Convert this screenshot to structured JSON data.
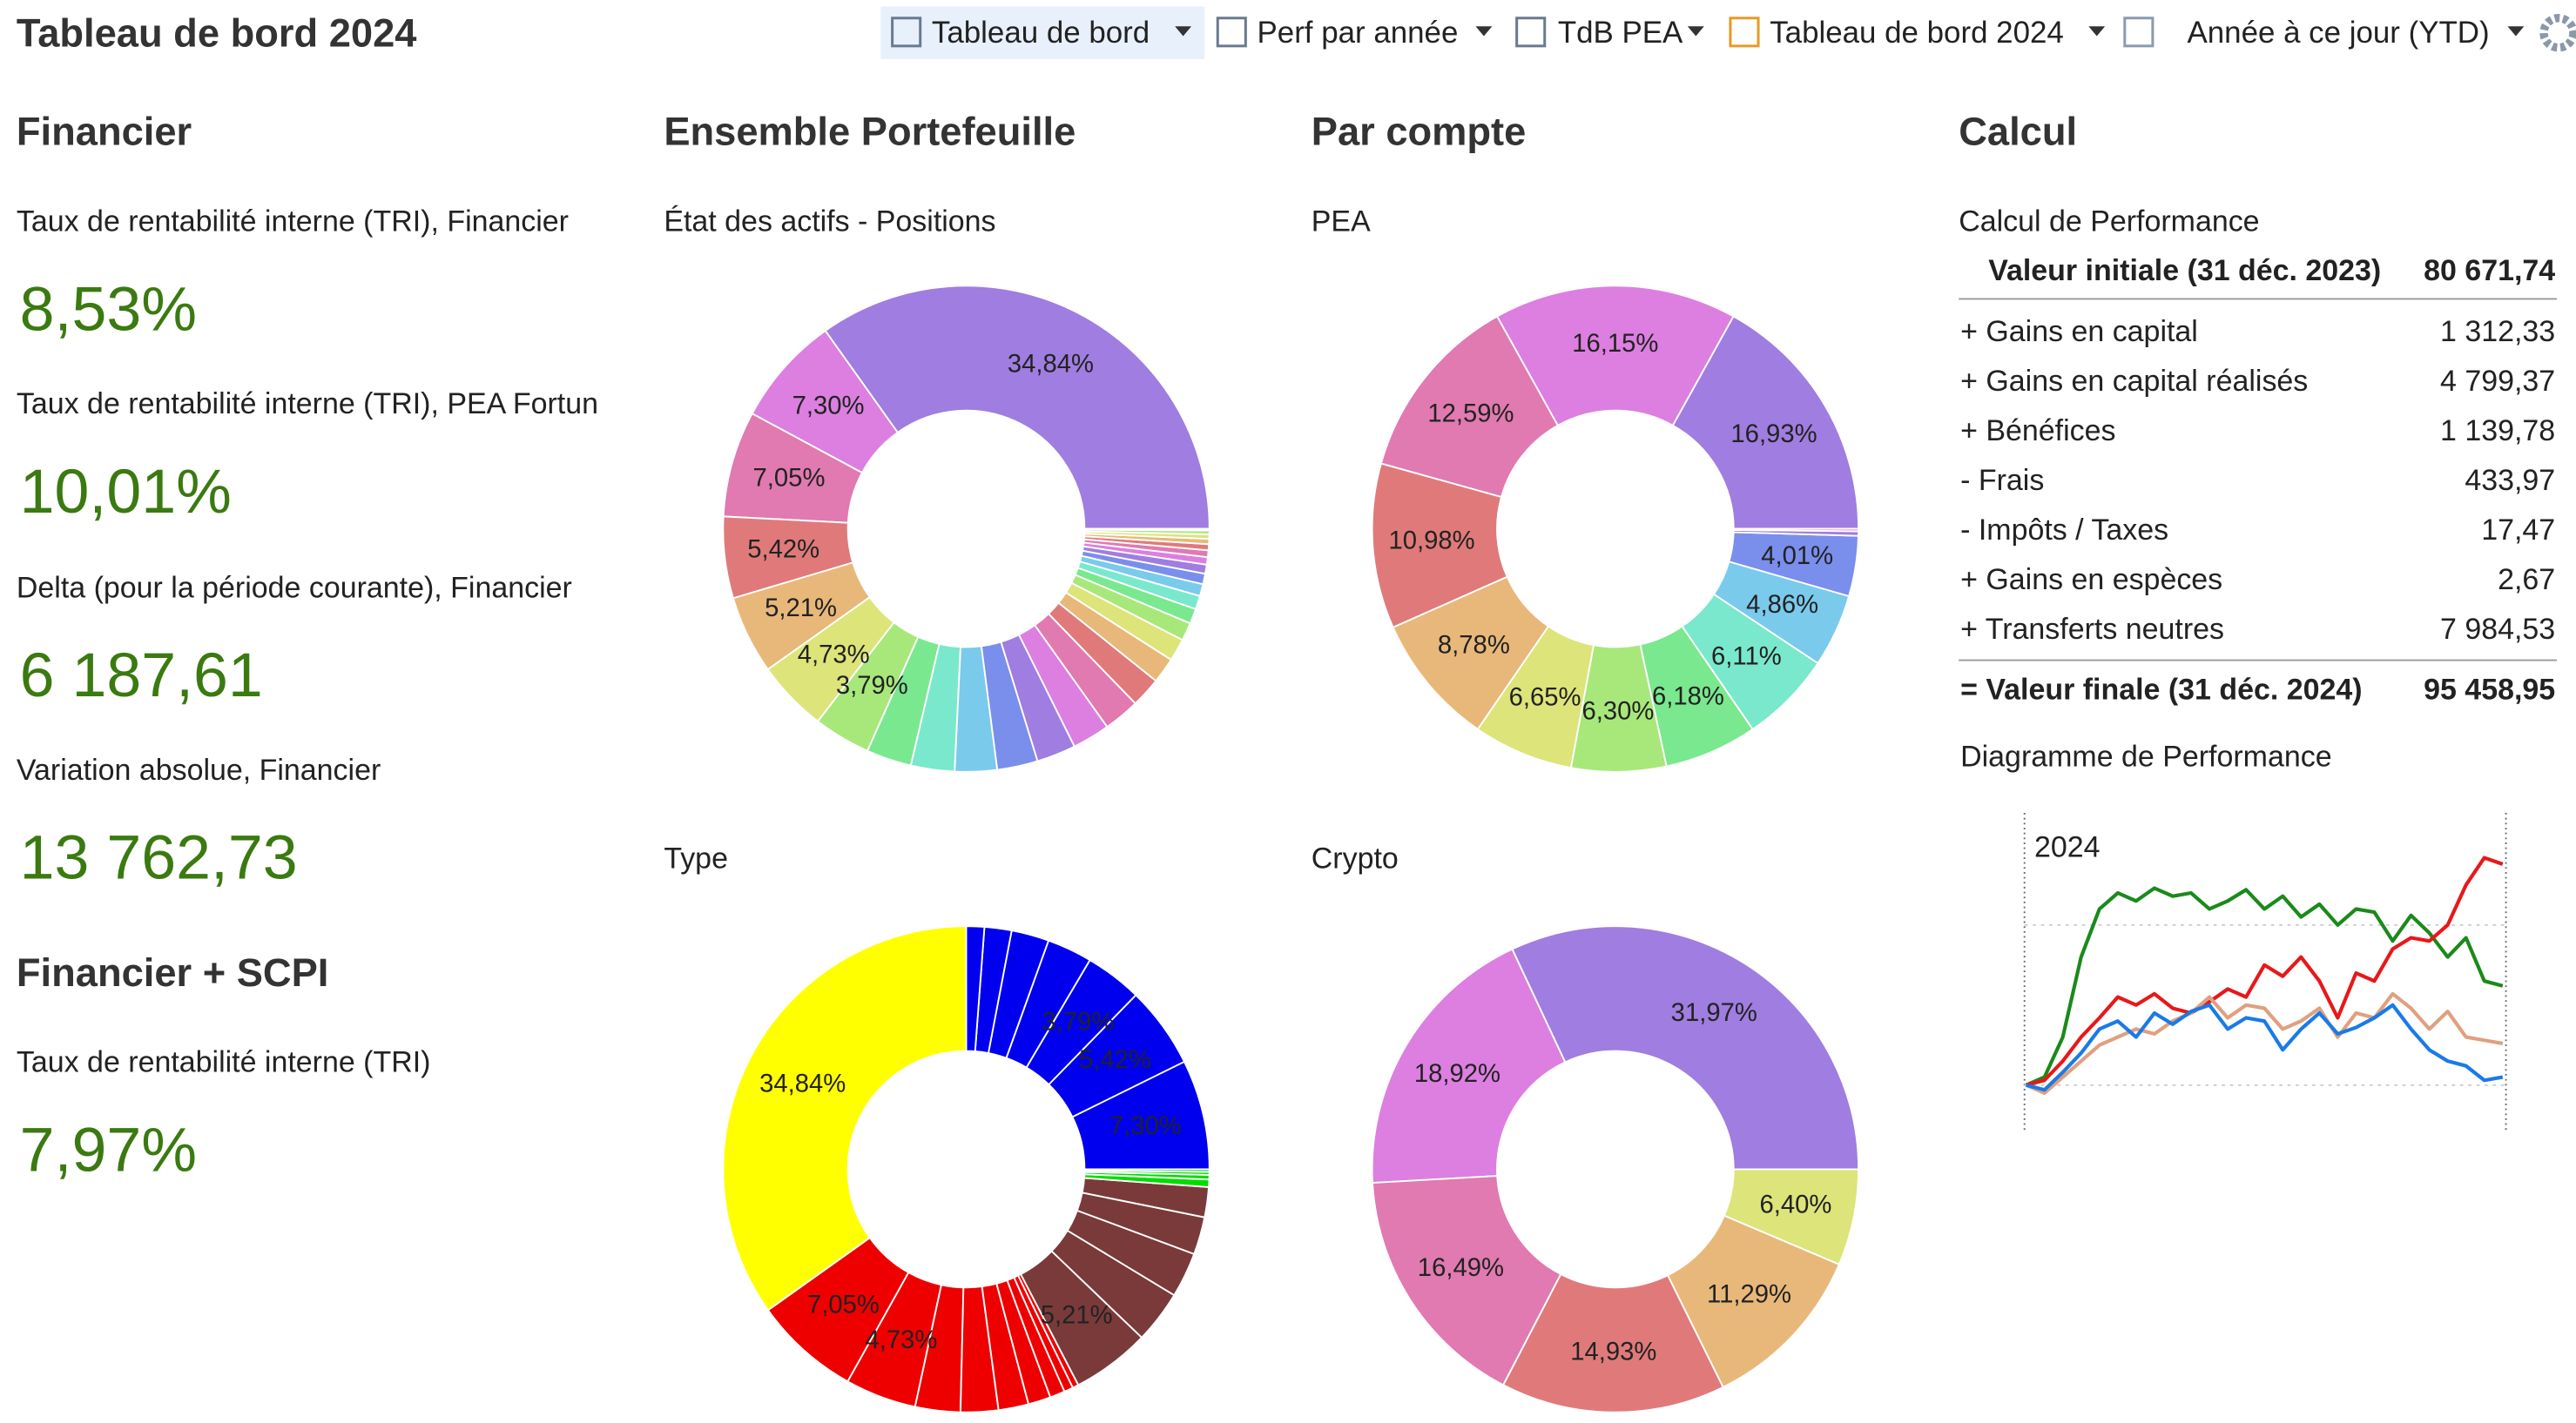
{
  "header": {
    "title": "Tableau de bord 2024",
    "tabs": [
      "Tableau de bord",
      "Perf par année",
      "TdB PEA",
      "Tableau de bord 2024",
      "Année à ce jour (YTD)"
    ]
  },
  "sections": {
    "financier": {
      "title": "Financier",
      "kpis": [
        {
          "label": "Taux de rentabilité interne (TRI), Financier",
          "value": "8,53%"
        },
        {
          "label": "Taux de rentabilité interne (TRI), PEA Fortun",
          "value": "10,01%"
        },
        {
          "label": "Delta (pour la période courante), Financier",
          "value": "6 187,61"
        },
        {
          "label": "Variation absolue, Financier",
          "value": "13 762,73"
        }
      ]
    },
    "financier_scpi": {
      "title": "Financier + SCPI",
      "kpis": [
        {
          "label": "Taux de rentabilité interne (TRI)",
          "value": "7,97%"
        }
      ]
    },
    "portefeuille": {
      "title": "Ensemble Portefeuille"
    },
    "par_compte": {
      "title": "Par compte"
    },
    "calcul": {
      "title": "Calcul",
      "subtitle": "Calcul de Performance",
      "initial": {
        "label": "Valeur initiale (31 déc. 2023)",
        "value": "80 671,74"
      },
      "rows": [
        {
          "label": "+ Gains en capital",
          "value": "1 312,33"
        },
        {
          "label": "+ Gains en capital réalisés",
          "value": "4 799,37"
        },
        {
          "label": "+ Bénéfices",
          "value": "1 139,78"
        },
        {
          "label": "-  Frais",
          "value": "433,97"
        },
        {
          "label": "-  Impôts / Taxes",
          "value": "17,47"
        },
        {
          "label": "+ Gains en espèces",
          "value": "2,67"
        },
        {
          "label": "+ Transferts neutres",
          "value": "7 984,53"
        }
      ],
      "final": {
        "label": "= Valeur finale (31 déc. 2024)",
        "value": "95 458,95"
      }
    }
  },
  "chart_data": [
    {
      "type": "pie",
      "title": "État des actifs - Positions",
      "values": [
        34.84,
        7.3,
        7.05,
        5.42,
        5.21,
        4.73,
        3.79,
        3.0,
        2.9,
        2.8,
        2.7,
        2.6,
        2.5,
        2.4,
        2.0,
        1.7,
        1.5,
        1.2,
        1.0,
        0.9,
        0.8,
        0.7,
        0.6,
        0.5,
        0.45,
        0.4,
        0.35,
        0.3,
        0.25,
        0.11
      ],
      "value_labels": [
        "34,84%",
        "7,30%",
        "7,05%",
        "5,42%",
        "5,21%",
        "4,73%",
        "3,79%",
        null,
        null,
        null,
        null,
        null,
        null,
        null,
        null,
        null,
        null,
        null,
        null,
        null,
        null,
        null,
        null,
        null,
        null,
        null,
        null,
        null,
        null,
        null
      ],
      "colors": [
        "#a07de0",
        "#dc7fe0",
        "#e07ab0",
        "#e07a7a",
        "#e8b87a",
        "#dde47a",
        "#a8e87a",
        "#7ae88e",
        "#7ae8cc",
        "#7acaec",
        "#7a8eec",
        "#a07de0",
        "#dc7fe0",
        "#e07ab0",
        "#e07a7a",
        "#e8b87a",
        "#dde47a",
        "#a8e87a",
        "#7ae88e",
        "#7ae8cc",
        "#7acaec",
        "#7a8eec",
        "#a07de0",
        "#dc7fe0",
        "#e07ab0",
        "#e07a7a",
        "#e8b87a",
        "#dde47a",
        "#a8e87a",
        "#7ae88e"
      ]
    },
    {
      "type": "pie",
      "title": "Type",
      "values": [
        7.3,
        5.42,
        3.79,
        3.0,
        2.5,
        1.8,
        1.2,
        34.84,
        7.05,
        4.73,
        3.0,
        2.5,
        2.0,
        1.5,
        1.0,
        0.6,
        0.4,
        5.21,
        3.5,
        3.0,
        2.5,
        2.0,
        0.5,
        0.3,
        0.2,
        0.17
      ],
      "value_labels": [
        "7,30%",
        "5,42%",
        "3,79%",
        null,
        null,
        null,
        null,
        "34,84%",
        "7,05%",
        "4,73%",
        null,
        null,
        null,
        null,
        null,
        null,
        null,
        "5,21%",
        null,
        null,
        null,
        null,
        null,
        null,
        null,
        null
      ],
      "colors": [
        "#0000ee",
        "#0000ee",
        "#0000ee",
        "#0000ee",
        "#0000ee",
        "#0000ee",
        "#0000ee",
        "#ffff00",
        "#ee0000",
        "#ee0000",
        "#ee0000",
        "#ee0000",
        "#ee0000",
        "#ee0000",
        "#ee0000",
        "#ee0000",
        "#ee0000",
        "#7a3a3a",
        "#7a3a3a",
        "#7a3a3a",
        "#7a3a3a",
        "#7a3a3a",
        "#00dd00",
        "#00dd00",
        "#00dd00",
        "#00dd00"
      ]
    },
    {
      "type": "pie",
      "title": "PEA",
      "values": [
        16.93,
        16.15,
        12.59,
        10.98,
        8.78,
        6.65,
        6.3,
        6.18,
        6.11,
        4.86,
        4.01,
        0.3,
        0.16
      ],
      "value_labels": [
        "16,93%",
        "16,15%",
        "12,59%",
        "10,98%",
        "8,78%",
        "6,65%",
        "6,30%",
        "6,18%",
        "6,11%",
        "4,86%",
        "4,01%",
        null,
        null
      ],
      "colors": [
        "#a07de0",
        "#dc7fe0",
        "#e07ab0",
        "#e07a7a",
        "#e8b87a",
        "#dde47a",
        "#a8e87a",
        "#7ae88e",
        "#7ae8cc",
        "#7acaec",
        "#7a8eec",
        "#a07de0",
        "#dc7fe0"
      ]
    },
    {
      "type": "pie",
      "title": "Crypto",
      "values": [
        31.97,
        18.92,
        16.49,
        14.93,
        11.29,
        6.4
      ],
      "value_labels": [
        "31,97%",
        "18,92%",
        "16,49%",
        "14,93%",
        "11,29%",
        "6,40%"
      ],
      "colors": [
        "#a07de0",
        "#dc7fe0",
        "#e07ab0",
        "#e07a7a",
        "#e8b87a",
        "#dde47a"
      ]
    },
    {
      "type": "line",
      "title": "Diagramme de Performance",
      "annotation": "2024",
      "ylim": [
        -3,
        17
      ],
      "yticks": [
        0,
        10
      ],
      "grid": true,
      "series": [
        {
          "color": "#1a8a1a",
          "values": [
            0,
            0.5,
            3,
            8,
            11,
            12,
            11.5,
            12.3,
            11.8,
            12,
            11,
            11.5,
            12.2,
            11,
            11.8,
            10.5,
            11.3,
            10,
            11,
            10.8,
            9,
            10.6,
            9.5,
            8,
            9.2,
            6.5,
            6.2
          ]
        },
        {
          "color": "#e81818",
          "values": [
            0,
            0.3,
            1.5,
            3,
            4.2,
            5.5,
            5,
            5.7,
            4.8,
            4.5,
            5.2,
            6,
            5.5,
            7.5,
            6.8,
            8,
            6.5,
            4.2,
            7,
            6.5,
            8.5,
            9.2,
            9,
            10,
            12.5,
            14.2,
            13.8
          ]
        },
        {
          "color": "#e0a080",
          "values": [
            0,
            -0.5,
            0.5,
            1.5,
            2.5,
            3,
            3.5,
            3.2,
            4,
            4.5,
            5.5,
            4.2,
            5,
            4.8,
            3.5,
            4,
            4.8,
            3,
            4.5,
            4.2,
            5.7,
            4.8,
            3.5,
            4.6,
            3,
            2.8,
            2.6
          ]
        },
        {
          "color": "#1a7ae8",
          "values": [
            0,
            -0.3,
            0.8,
            2,
            3.5,
            4,
            3,
            4.5,
            3.8,
            4.6,
            5,
            3.5,
            4.2,
            4,
            2.2,
            3.5,
            4.5,
            3.2,
            3.6,
            4.2,
            5,
            3.5,
            2.2,
            1.5,
            1.2,
            0.3,
            0.5
          ]
        }
      ]
    }
  ]
}
